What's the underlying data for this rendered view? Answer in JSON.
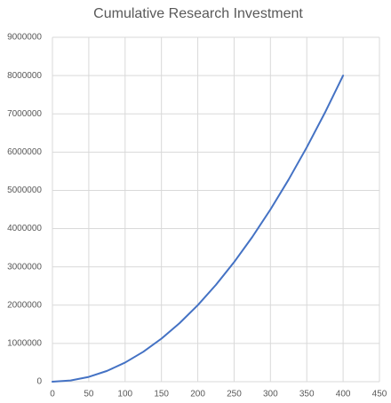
{
  "chart_data": {
    "type": "line",
    "title": "Cumulative Research Investment",
    "x": [
      0,
      25,
      50,
      75,
      100,
      125,
      150,
      175,
      200,
      225,
      250,
      275,
      300,
      325,
      350,
      375,
      400
    ],
    "values": [
      0,
      31250,
      125000,
      281250,
      500000,
      781250,
      1125000,
      1531250,
      2000000,
      2531250,
      3125000,
      3781250,
      4500000,
      5281250,
      6125000,
      7031250,
      8000000
    ],
    "color": "#4472c4",
    "xlim": [
      0,
      450
    ],
    "xticks": [
      0,
      50,
      100,
      150,
      200,
      250,
      300,
      350,
      400,
      450
    ],
    "ylim": [
      0,
      9000000
    ],
    "yticks": [
      0,
      1000000,
      2000000,
      3000000,
      4000000,
      5000000,
      6000000,
      7000000,
      8000000,
      9000000
    ],
    "grid": true
  }
}
